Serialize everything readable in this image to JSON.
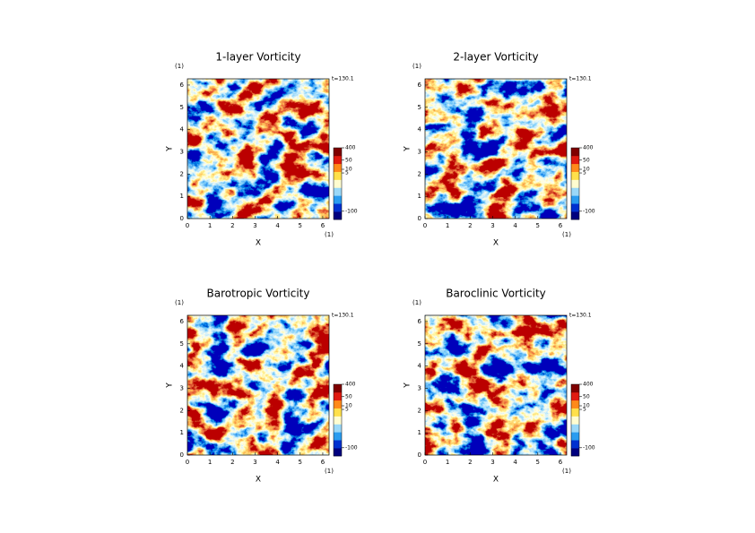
{
  "chart_data": [
    {
      "type": "heatmap",
      "title": "1-layer Vorticity",
      "time": "t=130.1",
      "xlabel": "X",
      "ylabel": "Y",
      "xunit": "(1)",
      "yunit": "(1)",
      "xlim": [
        0,
        6.28
      ],
      "ylim": [
        0,
        6.28
      ],
      "xticks": [
        0,
        1,
        2,
        3,
        4,
        5,
        6
      ],
      "yticks": [
        0,
        1,
        2,
        3,
        4,
        5,
        6
      ],
      "colorbar_ticks": [
        400,
        50,
        10,
        5,
        -100
      ],
      "colormap": [
        "#00007f",
        "#0030d0",
        "#2a9cf0",
        "#9ad8f8",
        "#fffdd0",
        "#ffe04a",
        "#ff8a1a",
        "#e01a10",
        "#7f0000"
      ]
    },
    {
      "type": "heatmap",
      "title": "2-layer Vorticity",
      "time": "t=130.1",
      "xlabel": "X",
      "ylabel": "Y",
      "xunit": "(1)",
      "yunit": "(1)",
      "xlim": [
        0,
        6.28
      ],
      "ylim": [
        0,
        6.28
      ],
      "xticks": [
        0,
        1,
        2,
        3,
        4,
        5,
        6
      ],
      "yticks": [
        0,
        1,
        2,
        3,
        4,
        5,
        6
      ],
      "colorbar_ticks": [
        400,
        50,
        10,
        5,
        -100
      ],
      "colormap": [
        "#00007f",
        "#0030d0",
        "#2a9cf0",
        "#9ad8f8",
        "#fffdd0",
        "#ffe04a",
        "#ff8a1a",
        "#e01a10",
        "#7f0000"
      ]
    },
    {
      "type": "heatmap",
      "title": "Barotropic Vorticity",
      "time": "t=130.1",
      "xlabel": "X",
      "ylabel": "Y",
      "xunit": "(1)",
      "yunit": "(1)",
      "xlim": [
        0,
        6.28
      ],
      "ylim": [
        0,
        6.28
      ],
      "xticks": [
        0,
        1,
        2,
        3,
        4,
        5,
        6
      ],
      "yticks": [
        0,
        1,
        2,
        3,
        4,
        5,
        6
      ],
      "colorbar_ticks": [
        400,
        50,
        10,
        5,
        -100
      ],
      "colormap": [
        "#00007f",
        "#0030d0",
        "#2a9cf0",
        "#9ad8f8",
        "#fffdd0",
        "#ffe04a",
        "#ff8a1a",
        "#e01a10",
        "#7f0000"
      ]
    },
    {
      "type": "heatmap",
      "title": "Baroclinic Vorticity",
      "time": "t=130.1",
      "xlabel": "X",
      "ylabel": "Y",
      "xunit": "(1)",
      "yunit": "(1)",
      "xlim": [
        0,
        6.28
      ],
      "ylim": [
        0,
        6.28
      ],
      "xticks": [
        0,
        1,
        2,
        3,
        4,
        5,
        6
      ],
      "yticks": [
        0,
        1,
        2,
        3,
        4,
        5,
        6
      ],
      "colorbar_ticks": [
        400,
        50,
        10,
        5,
        -100
      ],
      "colormap": [
        "#00007f",
        "#0030d0",
        "#2a9cf0",
        "#9ad8f8",
        "#fffdd0",
        "#ffe04a",
        "#ff8a1a",
        "#e01a10",
        "#7f0000"
      ]
    }
  ]
}
